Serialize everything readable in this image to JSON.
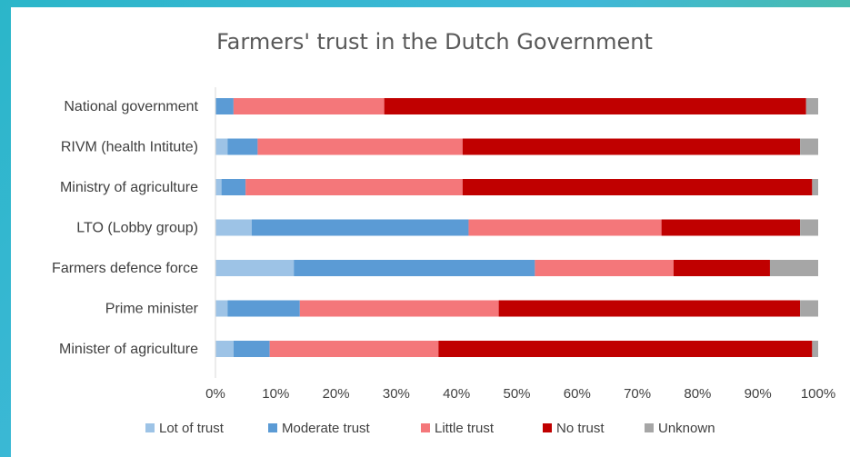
{
  "chart_data": {
    "type": "bar",
    "orientation": "horizontal",
    "stacked": "percent",
    "title": "Farmers' trust in the Dutch Government",
    "categories": [
      "National government",
      "RIVM (health Intitute)",
      "Ministry of agriculture",
      "LTO (Lobby group)",
      "Farmers defence force",
      "Prime minister",
      "Minister of agriculture"
    ],
    "series": [
      {
        "name": "Lot of trust",
        "color": "#9dc3e6",
        "values": [
          0,
          2,
          1,
          6,
          13,
          2,
          3
        ]
      },
      {
        "name": "Moderate trust",
        "color": "#5b9bd5",
        "values": [
          3,
          5,
          4,
          36,
          40,
          12,
          6
        ]
      },
      {
        "name": "Little trust",
        "color": "#f4777a",
        "values": [
          25,
          34,
          36,
          32,
          23,
          33,
          28
        ]
      },
      {
        "name": "No trust",
        "color": "#c00000",
        "values": [
          70,
          56,
          58,
          23,
          16,
          50,
          62
        ]
      },
      {
        "name": "Unknown",
        "color": "#a6a6a6",
        "values": [
          2,
          3,
          1,
          3,
          8,
          3,
          1
        ]
      }
    ],
    "xlim": [
      0,
      100
    ],
    "x_ticks": [
      "0%",
      "10%",
      "20%",
      "30%",
      "40%",
      "50%",
      "60%",
      "70%",
      "80%",
      "90%",
      "100%"
    ],
    "grid": false,
    "legend_position": "bottom"
  }
}
